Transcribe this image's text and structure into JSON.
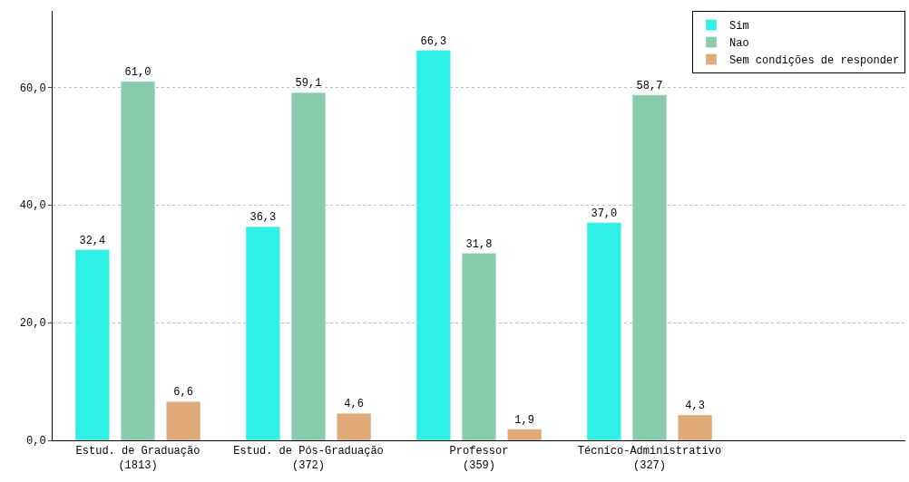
{
  "chart_data": {
    "type": "bar",
    "categories": [
      "Estud. de Graduação\n(1813)",
      "Estud. de Pós-Graduação\n(372)",
      "Professor\n(359)",
      "Técnico-Administrativo\n(327)",
      null
    ],
    "series": [
      {
        "name": "Sim",
        "color": "#2ef0e4",
        "values": [
          32.4,
          36.3,
          66.3,
          37.0,
          null
        ],
        "value_labels": [
          "32,4",
          "36,3",
          "66,3",
          "37,0",
          null
        ]
      },
      {
        "name": "Nao",
        "color": "#88cbad",
        "values": [
          61.0,
          59.1,
          31.8,
          58.7,
          null
        ],
        "value_labels": [
          "61,0",
          "59,1",
          "31,8",
          "58,7",
          null
        ]
      },
      {
        "name": "Sem condições de responder",
        "color": "#e0aa78",
        "values": [
          6.6,
          4.6,
          1.9,
          4.3,
          null
        ],
        "value_labels": [
          "6,6",
          "4,6",
          "1,9",
          "4,3",
          null
        ]
      }
    ],
    "ylim": [
      0,
      73
    ],
    "yticks": [
      {
        "value": 0,
        "label": "0,0"
      },
      {
        "value": 20,
        "label": "20,0"
      },
      {
        "value": 40,
        "label": "40,0"
      },
      {
        "value": 60,
        "label": "60,0"
      }
    ],
    "grid": "y",
    "legend": "top right"
  }
}
